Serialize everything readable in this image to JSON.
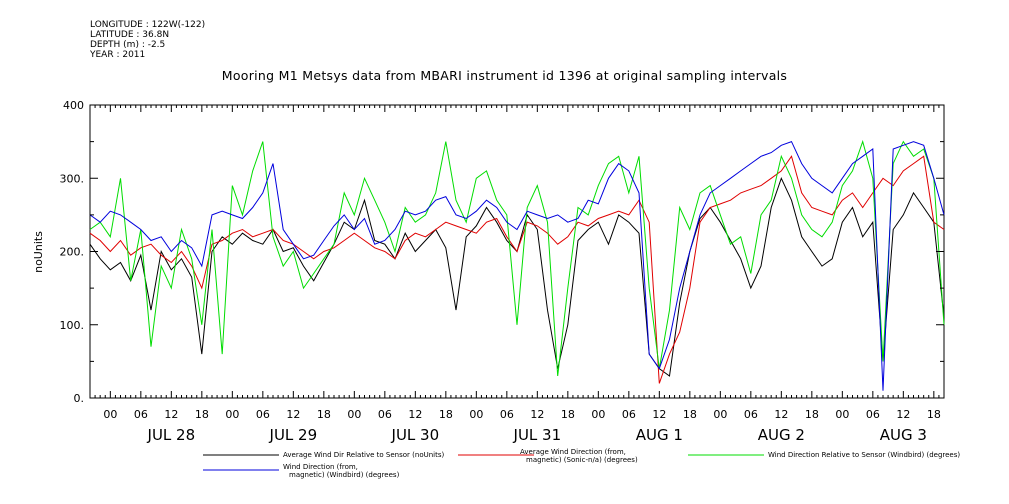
{
  "header": {
    "longitude": "LONGITUDE : 122W(-122)",
    "latitude": "LATITUDE : 36.8N",
    "depth": "DEPTH (m) : -2.5",
    "year": "YEAR : 2011"
  },
  "chart_data": {
    "type": "line",
    "title": "Mooring M1 Metsys data from MBARI instrument id 1396 at original sampling intervals",
    "ylabel": "noUnits",
    "xlabel": "",
    "ylim": [
      0,
      400
    ],
    "yticks": [
      "0.",
      "100.",
      "200.",
      "300.",
      "400"
    ],
    "x_hour_ticks": [
      "00",
      "06",
      "12",
      "18",
      "00",
      "06",
      "12",
      "18",
      "00",
      "06",
      "12",
      "18",
      "00",
      "06",
      "12",
      "18",
      "00",
      "06",
      "12",
      "18",
      "00",
      "06",
      "12",
      "18",
      "00",
      "06",
      "12",
      "18"
    ],
    "x_day_labels": [
      "JUL 28",
      "JUL 29",
      "JUL 30",
      "JUL 31",
      "AUG  1",
      "AUG  2",
      "AUG  3"
    ],
    "xlim_hours": [
      -4,
      164
    ],
    "grid": false,
    "legend_placement": "bottom",
    "series": [
      {
        "name": "Average Wind Dir Relative to Sensor (noUnits)",
        "color": "#000000",
        "x": [
          -4,
          -2,
          0,
          2,
          4,
          6,
          8,
          10,
          12,
          14,
          16,
          18,
          20,
          22,
          24,
          26,
          28,
          30,
          32,
          34,
          36,
          38,
          40,
          42,
          44,
          46,
          48,
          50,
          52,
          54,
          56,
          58,
          60,
          62,
          64,
          66,
          68,
          70,
          72,
          74,
          76,
          78,
          80,
          82,
          84,
          86,
          88,
          90,
          92,
          94,
          96,
          98,
          100,
          102,
          104,
          106,
          108,
          110,
          112,
          114,
          116,
          118,
          120,
          122,
          124,
          126,
          128,
          130,
          132,
          134,
          136,
          138,
          140,
          142,
          144,
          146,
          148,
          150,
          152,
          154,
          156,
          158,
          160,
          162,
          164
        ],
        "y": [
          210,
          190,
          175,
          185,
          160,
          195,
          120,
          200,
          175,
          190,
          165,
          60,
          200,
          220,
          210,
          225,
          215,
          210,
          230,
          200,
          205,
          180,
          160,
          185,
          210,
          240,
          230,
          270,
          215,
          210,
          190,
          225,
          200,
          215,
          230,
          205,
          120,
          220,
          235,
          260,
          240,
          215,
          200,
          250,
          230,
          120,
          40,
          100,
          215,
          230,
          240,
          210,
          250,
          240,
          225,
          60,
          40,
          30,
          130,
          200,
          245,
          260,
          240,
          215,
          190,
          150,
          180,
          260,
          300,
          270,
          220,
          200,
          180,
          190,
          240,
          260,
          220,
          240,
          50,
          230,
          250,
          280,
          260,
          240,
          110
        ]
      },
      {
        "name": "Average Wind Direction (from, magnetic) (Sonic-n/a) (degrees)",
        "color": "#e00000",
        "x": [
          -4,
          -2,
          0,
          2,
          4,
          6,
          8,
          10,
          12,
          14,
          16,
          18,
          20,
          22,
          24,
          26,
          28,
          30,
          32,
          34,
          36,
          38,
          40,
          42,
          44,
          46,
          48,
          50,
          52,
          54,
          56,
          58,
          60,
          62,
          64,
          66,
          68,
          70,
          72,
          74,
          76,
          78,
          80,
          82,
          84,
          86,
          88,
          90,
          92,
          94,
          96,
          98,
          100,
          102,
          104,
          106,
          108,
          110,
          112,
          114,
          116,
          118,
          120,
          122,
          124,
          126,
          128,
          130,
          132,
          134,
          136,
          138,
          140,
          142,
          144,
          146,
          148,
          150,
          152,
          154,
          156,
          158,
          160,
          162,
          164
        ],
        "y": [
          225,
          215,
          200,
          215,
          195,
          205,
          210,
          195,
          185,
          200,
          180,
          150,
          210,
          215,
          225,
          230,
          220,
          225,
          230,
          215,
          210,
          200,
          190,
          200,
          205,
          215,
          225,
          215,
          205,
          200,
          190,
          215,
          225,
          220,
          230,
          240,
          235,
          230,
          225,
          240,
          245,
          220,
          200,
          240,
          235,
          225,
          210,
          220,
          240,
          235,
          245,
          250,
          255,
          250,
          270,
          240,
          20,
          60,
          90,
          150,
          240,
          260,
          265,
          270,
          280,
          285,
          290,
          300,
          310,
          330,
          280,
          260,
          255,
          250,
          270,
          280,
          260,
          280,
          300,
          290,
          310,
          320,
          330,
          240,
          230
        ]
      },
      {
        "name": "Wind Direction Relative to Sensor (Windbird) (degrees)",
        "color": "#00dd00",
        "x": [
          -4,
          -2,
          0,
          2,
          4,
          6,
          8,
          10,
          12,
          14,
          16,
          18,
          20,
          22,
          24,
          26,
          28,
          30,
          32,
          34,
          36,
          38,
          40,
          42,
          44,
          46,
          48,
          50,
          52,
          54,
          56,
          58,
          60,
          62,
          64,
          66,
          68,
          70,
          72,
          74,
          76,
          78,
          80,
          82,
          84,
          86,
          88,
          90,
          92,
          94,
          96,
          98,
          100,
          102,
          104,
          106,
          108,
          110,
          112,
          114,
          116,
          118,
          120,
          122,
          124,
          126,
          128,
          130,
          132,
          134,
          136,
          138,
          140,
          142,
          144,
          146,
          148,
          150,
          152,
          154,
          156,
          158,
          160,
          162,
          164
        ],
        "y": [
          230,
          240,
          220,
          300,
          160,
          230,
          70,
          180,
          150,
          230,
          190,
          100,
          230,
          60,
          290,
          250,
          310,
          350,
          220,
          180,
          200,
          150,
          170,
          190,
          210,
          280,
          250,
          300,
          270,
          240,
          200,
          260,
          240,
          250,
          280,
          350,
          270,
          240,
          300,
          310,
          270,
          250,
          100,
          260,
          290,
          240,
          30,
          150,
          260,
          250,
          290,
          320,
          330,
          280,
          330,
          150,
          40,
          120,
          260,
          230,
          280,
          290,
          250,
          210,
          220,
          170,
          250,
          270,
          330,
          300,
          250,
          230,
          220,
          240,
          290,
          310,
          350,
          300,
          50,
          320,
          350,
          330,
          340,
          300,
          100
        ]
      },
      {
        "name": "Wind Direction (from, magnetic) (Windbird) (degrees)",
        "color": "#0000dd",
        "x": [
          -4,
          -2,
          0,
          2,
          4,
          6,
          8,
          10,
          12,
          14,
          16,
          18,
          20,
          22,
          24,
          26,
          28,
          30,
          32,
          34,
          36,
          38,
          40,
          42,
          44,
          46,
          48,
          50,
          52,
          54,
          56,
          58,
          60,
          62,
          64,
          66,
          68,
          70,
          72,
          74,
          76,
          78,
          80,
          82,
          84,
          86,
          88,
          90,
          92,
          94,
          96,
          98,
          100,
          102,
          104,
          106,
          108,
          110,
          112,
          114,
          116,
          118,
          120,
          122,
          124,
          126,
          128,
          130,
          132,
          134,
          136,
          138,
          140,
          142,
          144,
          146,
          148,
          150,
          152,
          154,
          156,
          158,
          160,
          162,
          164
        ],
        "y": [
          250,
          240,
          255,
          250,
          240,
          230,
          215,
          220,
          200,
          215,
          205,
          180,
          250,
          255,
          250,
          245,
          260,
          280,
          320,
          230,
          210,
          190,
          195,
          215,
          235,
          250,
          230,
          245,
          210,
          215,
          230,
          255,
          250,
          255,
          270,
          275,
          250,
          245,
          255,
          270,
          260,
          240,
          230,
          255,
          250,
          245,
          250,
          240,
          245,
          270,
          265,
          300,
          320,
          310,
          280,
          60,
          40,
          80,
          150,
          200,
          250,
          280,
          290,
          300,
          310,
          320,
          330,
          335,
          345,
          350,
          320,
          300,
          290,
          280,
          300,
          320,
          330,
          340,
          10,
          340,
          345,
          350,
          345,
          300,
          250
        ]
      }
    ]
  }
}
